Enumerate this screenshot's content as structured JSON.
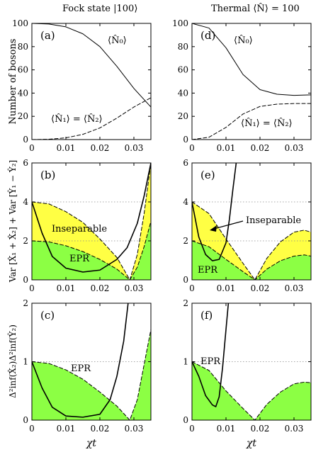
{
  "columns": {
    "left": "Fock state |100⟩",
    "right": "Thermal ⟨N̂⟩ = 100"
  },
  "y_labels": {
    "row1": "Number of bosons",
    "row2": "Var [X̂₁ + X̂₂] + Var [Ŷ₁ − Ŷ₂]",
    "row3": "Δ²inf(X̂₂)Δ²inf(Ŷ₂)"
  },
  "x_label": "χt",
  "colors": {
    "inseparable": "#ffff44",
    "epr": "#8cff44",
    "grid": "#8a8a8a"
  },
  "chart_data": [
    {
      "panel": "(a)",
      "type": "line",
      "xlim": [
        0,
        0.035
      ],
      "ylim": [
        0,
        100
      ],
      "xticks": [
        "0",
        "0.01",
        "0.02",
        "0.03"
      ],
      "yticks": [
        "0",
        "20",
        "40",
        "60",
        "80",
        "100"
      ],
      "annotations": [
        "⟨N̂₀⟩",
        "⟨N̂₁⟩ = ⟨N̂₂⟩"
      ],
      "series": [
        {
          "style": "solid",
          "x": [
            0,
            0.005,
            0.01,
            0.015,
            0.02,
            0.025,
            0.03,
            0.035
          ],
          "y": [
            100,
            99.5,
            97,
            91,
            80,
            63,
            44,
            28
          ]
        },
        {
          "style": "dashed",
          "x": [
            0,
            0.005,
            0.01,
            0.015,
            0.02,
            0.025,
            0.03,
            0.035
          ],
          "y": [
            0,
            0.3,
            1.5,
            4.5,
            10,
            18.5,
            28,
            36
          ]
        }
      ]
    },
    {
      "panel": "(d)",
      "type": "line",
      "xlim": [
        0,
        0.035
      ],
      "ylim": [
        0,
        100
      ],
      "xticks": [
        "0",
        "0.01",
        "0.02",
        "0.03"
      ],
      "yticks": [
        "0",
        "20",
        "40",
        "60",
        "80",
        "100"
      ],
      "annotations": [
        "⟨N̂₀⟩",
        "⟨N̂₁⟩ = ⟨N̂₂⟩"
      ],
      "series": [
        {
          "style": "solid",
          "x": [
            0,
            0.005,
            0.01,
            0.015,
            0.02,
            0.025,
            0.03,
            0.035
          ],
          "y": [
            100,
            96,
            79,
            56,
            43,
            39,
            38,
            38.5
          ]
        },
        {
          "style": "dashed",
          "x": [
            0,
            0.005,
            0.01,
            0.015,
            0.02,
            0.025,
            0.03,
            0.035
          ],
          "y": [
            0,
            2,
            10.5,
            22,
            28.5,
            30.5,
            31,
            31
          ]
        }
      ]
    },
    {
      "panel": "(b)",
      "type": "area",
      "xlim": [
        0,
        0.035
      ],
      "ylim": [
        0,
        6
      ],
      "xticks": [
        "0",
        "0.01",
        "0.02",
        "0.03"
      ],
      "yticks": [
        "0",
        "2",
        "4",
        "6"
      ],
      "annotations": [
        "Inseparable",
        "EPR"
      ],
      "series": [
        {
          "style": "dashed",
          "fill": "inseparable",
          "x": [
            0,
            0.005,
            0.01,
            0.015,
            0.02,
            0.025,
            0.0288,
            0.031,
            0.033,
            0.035
          ],
          "y": [
            4,
            3.9,
            3.5,
            2.95,
            2.1,
            1.15,
            0,
            1.3,
            3.4,
            6
          ]
        },
        {
          "style": "dashed",
          "fill": "epr",
          "x": [
            0,
            0.005,
            0.01,
            0.015,
            0.02,
            0.025,
            0.0288,
            0.031,
            0.033,
            0.035
          ],
          "y": [
            2,
            1.95,
            1.75,
            1.45,
            1.05,
            0.55,
            0,
            0.65,
            1.7,
            3
          ]
        },
        {
          "style": "solid",
          "x": [
            0,
            0.003,
            0.006,
            0.01,
            0.015,
            0.02,
            0.025,
            0.028,
            0.031,
            0.033,
            0.035
          ],
          "y": [
            4,
            2.4,
            1.2,
            0.6,
            0.4,
            0.5,
            1.05,
            1.65,
            2.9,
            4.3,
            6
          ]
        }
      ]
    },
    {
      "panel": "(e)",
      "type": "area",
      "xlim": [
        0,
        0.035
      ],
      "ylim": [
        0,
        6
      ],
      "xticks": [
        "0",
        "0.01",
        "0.02",
        "0.03"
      ],
      "yticks": [
        "0",
        "2",
        "4",
        "6"
      ],
      "annotations": [
        "Inseparable",
        "EPR"
      ],
      "series": [
        {
          "style": "dashed",
          "fill": "inseparable",
          "x": [
            0,
            0.005,
            0.01,
            0.015,
            0.0185,
            0.022,
            0.026,
            0.03,
            0.033,
            0.035
          ],
          "y": [
            4,
            3.4,
            2.1,
            0.85,
            0,
            1.1,
            1.95,
            2.45,
            2.55,
            2.45
          ]
        },
        {
          "style": "dashed",
          "fill": "epr",
          "x": [
            0,
            0.005,
            0.01,
            0.015,
            0.0185,
            0.022,
            0.026,
            0.03,
            0.033,
            0.035
          ],
          "y": [
            2,
            1.7,
            1.05,
            0.42,
            0,
            0.55,
            0.98,
            1.22,
            1.28,
            1.22
          ]
        },
        {
          "style": "solid",
          "x": [
            0,
            0.002,
            0.004,
            0.006,
            0.008,
            0.01,
            0.011,
            0.012,
            0.013
          ],
          "y": [
            4,
            2.2,
            1.3,
            0.98,
            1.05,
            1.9,
            3.1,
            4.6,
            6
          ]
        }
      ]
    },
    {
      "panel": "(c)",
      "type": "area",
      "xlim": [
        0,
        0.035
      ],
      "ylim": [
        0,
        2
      ],
      "xticks": [
        "0",
        "0.01",
        "0.02",
        "0.03"
      ],
      "yticks": [
        "0",
        "1",
        "2"
      ],
      "annotations": [
        "EPR"
      ],
      "series": [
        {
          "style": "dashed",
          "fill": "epr",
          "x": [
            0,
            0.005,
            0.01,
            0.015,
            0.02,
            0.025,
            0.0288,
            0.031,
            0.033,
            0.035
          ],
          "y": [
            1,
            0.97,
            0.86,
            0.7,
            0.48,
            0.24,
            0,
            0.35,
            0.95,
            1.55
          ]
        },
        {
          "style": "solid",
          "x": [
            0,
            0.003,
            0.006,
            0.01,
            0.015,
            0.02,
            0.023,
            0.025,
            0.027,
            0.0283
          ],
          "y": [
            1,
            0.55,
            0.22,
            0.07,
            0.05,
            0.1,
            0.35,
            0.75,
            1.35,
            2
          ]
        }
      ]
    },
    {
      "panel": "(f)",
      "type": "area",
      "xlim": [
        0,
        0.035
      ],
      "ylim": [
        0,
        2
      ],
      "xticks": [
        "0",
        "0.01",
        "0.02",
        "0.03"
      ],
      "yticks": [
        "0",
        "1",
        "2"
      ],
      "annotations": [
        "EPR"
      ],
      "series": [
        {
          "style": "dashed",
          "fill": "epr",
          "x": [
            0,
            0.005,
            0.01,
            0.015,
            0.0185,
            0.022,
            0.026,
            0.03,
            0.033,
            0.035
          ],
          "y": [
            1,
            0.85,
            0.5,
            0.2,
            0,
            0.27,
            0.48,
            0.62,
            0.65,
            0.64
          ]
        },
        {
          "style": "solid",
          "x": [
            0,
            0.002,
            0.004,
            0.006,
            0.007,
            0.008,
            0.009,
            0.01,
            0.0107
          ],
          "y": [
            1,
            0.75,
            0.42,
            0.26,
            0.23,
            0.4,
            0.9,
            1.55,
            2
          ]
        }
      ]
    }
  ]
}
